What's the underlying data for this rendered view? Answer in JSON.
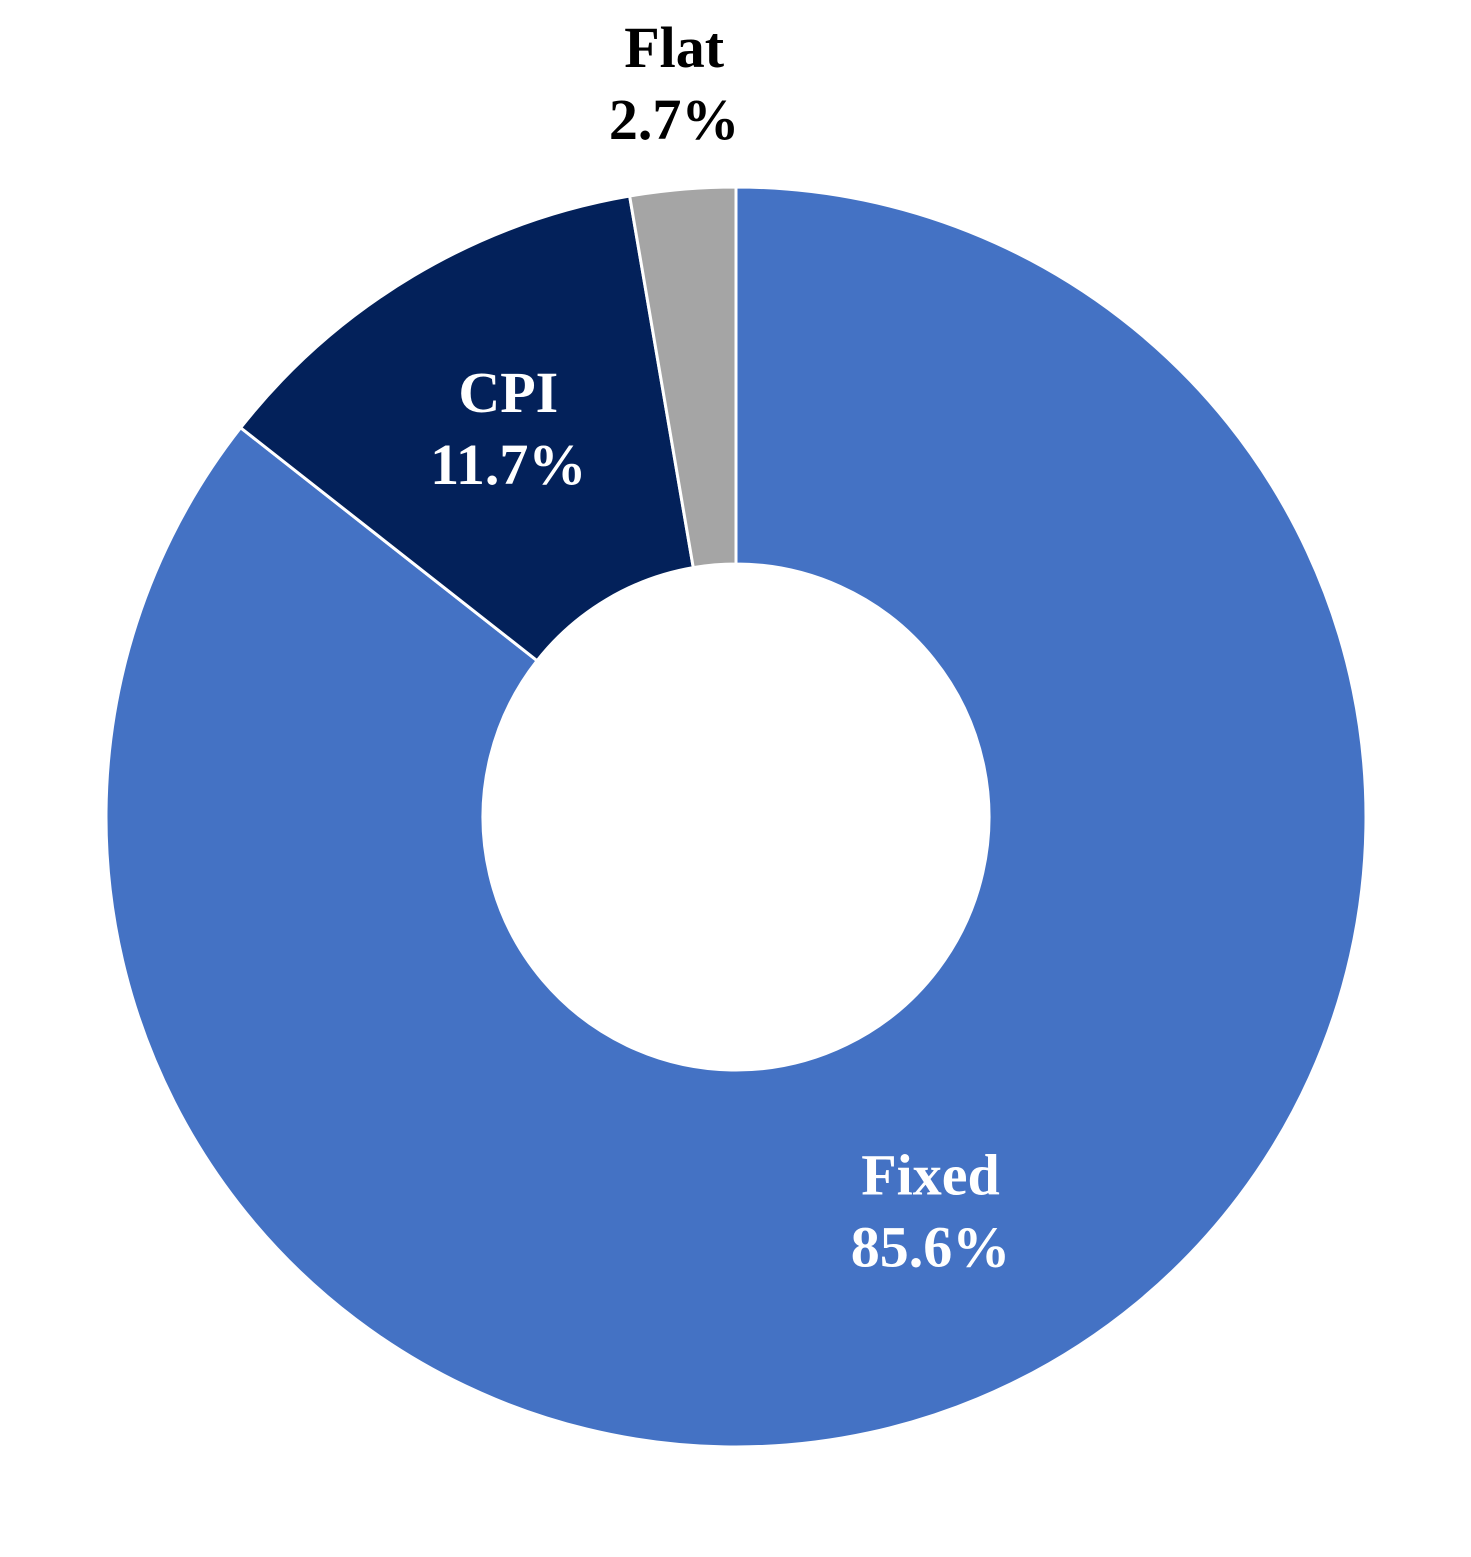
{
  "chart_data": {
    "type": "donut",
    "categories": [
      "Fixed",
      "CPI",
      "Flat"
    ],
    "values": [
      85.6,
      11.7,
      2.7
    ],
    "value_labels": [
      "85.6%",
      "11.7%",
      "2.7%"
    ],
    "colors": [
      "#4472c4",
      "#03215a",
      "#a5a5a5"
    ]
  }
}
